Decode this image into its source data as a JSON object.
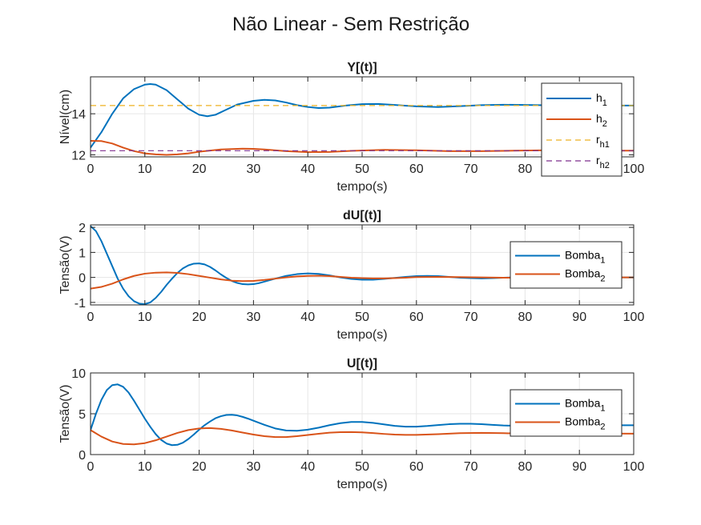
{
  "figure": {
    "title": "Não Linear - Sem Restrição"
  },
  "chart_data": [
    {
      "type": "line",
      "title": "Y[(t)]",
      "xlabel": "tempo(s)",
      "ylabel": "Nível(cm)",
      "xlim": [
        0,
        100
      ],
      "ylim": [
        11.9,
        15.8
      ],
      "xticks": [
        0,
        10,
        20,
        30,
        40,
        50,
        60,
        70,
        80,
        90,
        100
      ],
      "yticks": [
        12,
        14
      ],
      "grid": true,
      "legend_position": "top-right",
      "series": [
        {
          "label": "h",
          "sub": "1",
          "color": "#0072BD",
          "style": "solid",
          "x": [
            0,
            2,
            4,
            6,
            8,
            10,
            11,
            12,
            14,
            16,
            18,
            20,
            21.5,
            23,
            25,
            27,
            30,
            32,
            34,
            36,
            38,
            40,
            42,
            44,
            47,
            50,
            53,
            56,
            60,
            64,
            68,
            72,
            76,
            80,
            85,
            90,
            95,
            100
          ],
          "y": [
            12.35,
            13.1,
            14.0,
            14.75,
            15.2,
            15.42,
            15.45,
            15.42,
            15.15,
            14.7,
            14.25,
            13.95,
            13.88,
            13.95,
            14.2,
            14.45,
            14.63,
            14.68,
            14.65,
            14.55,
            14.42,
            14.33,
            14.28,
            14.3,
            14.4,
            14.47,
            14.48,
            14.43,
            14.36,
            14.33,
            14.37,
            14.42,
            14.44,
            14.43,
            14.41,
            14.4,
            14.4,
            14.4
          ]
        },
        {
          "label": "h",
          "sub": "2",
          "color": "#D95319",
          "style": "solid",
          "x": [
            0,
            2,
            4,
            6,
            8,
            10,
            12,
            14,
            16,
            18,
            20,
            24,
            28,
            30,
            32,
            36,
            40,
            44,
            48,
            54,
            60,
            66,
            72,
            78,
            84,
            90,
            95,
            100
          ],
          "y": [
            12.68,
            12.67,
            12.55,
            12.35,
            12.18,
            12.07,
            12.02,
            12.0,
            12.02,
            12.07,
            12.15,
            12.26,
            12.3,
            12.29,
            12.26,
            12.18,
            12.13,
            12.14,
            12.19,
            12.24,
            12.22,
            12.18,
            12.18,
            12.2,
            12.22,
            12.21,
            12.2,
            12.2
          ]
        },
        {
          "label": "r",
          "sub": "h1",
          "color": "#EDB120",
          "style": "dashed",
          "x": [
            0,
            100
          ],
          "y": [
            14.4,
            14.4
          ]
        },
        {
          "label": "r",
          "sub": "h2",
          "color": "#7E2F8E",
          "style": "dashed",
          "x": [
            0,
            100
          ],
          "y": [
            12.2,
            12.2
          ]
        }
      ]
    },
    {
      "type": "line",
      "title": "dU[(t)]",
      "xlabel": "tempo(s)",
      "ylabel": "Tensão(V)",
      "xlim": [
        0,
        100
      ],
      "ylim": [
        -1.1,
        2.1
      ],
      "xticks": [
        0,
        10,
        20,
        30,
        40,
        50,
        60,
        70,
        80,
        90,
        100
      ],
      "yticks": [
        -1,
        0,
        1,
        2
      ],
      "grid": true,
      "legend_position": "right",
      "series": [
        {
          "label": "Bomba",
          "sub": "1",
          "color": "#0072BD",
          "style": "solid",
          "x": [
            0,
            1,
            2,
            3,
            4,
            5,
            6,
            7,
            8,
            9,
            10,
            11,
            12,
            13,
            14,
            15,
            16,
            17,
            18,
            19,
            20,
            21,
            22,
            23,
            24,
            25,
            26,
            27,
            28,
            29,
            30,
            31,
            32,
            34,
            36,
            38,
            40,
            42,
            44,
            46,
            48,
            50,
            52,
            54,
            56,
            58,
            60,
            62,
            64,
            66,
            68,
            70,
            72,
            74,
            76,
            78,
            80,
            85,
            90,
            95,
            100
          ],
          "y": [
            2.05,
            1.85,
            1.45,
            0.95,
            0.45,
            -0.05,
            -0.45,
            -0.75,
            -0.95,
            -1.05,
            -1.07,
            -1.0,
            -0.82,
            -0.58,
            -0.3,
            -0.05,
            0.18,
            0.36,
            0.48,
            0.55,
            0.56,
            0.52,
            0.42,
            0.28,
            0.12,
            -0.02,
            -0.14,
            -0.22,
            -0.27,
            -0.28,
            -0.27,
            -0.23,
            -0.17,
            -0.05,
            0.06,
            0.13,
            0.16,
            0.14,
            0.08,
            0.0,
            -0.06,
            -0.09,
            -0.09,
            -0.06,
            -0.02,
            0.02,
            0.05,
            0.06,
            0.05,
            0.02,
            -0.01,
            -0.03,
            -0.04,
            -0.03,
            -0.01,
            0.0,
            0.01,
            0.01,
            0.0,
            0.0,
            0.0
          ]
        },
        {
          "label": "Bomba",
          "sub": "2",
          "color": "#D95319",
          "style": "solid",
          "x": [
            0,
            2,
            4,
            6,
            8,
            10,
            12,
            14,
            16,
            18,
            20,
            22,
            24,
            26,
            28,
            30,
            32,
            34,
            36,
            38,
            40,
            42,
            44,
            46,
            48,
            50,
            52,
            54,
            56,
            58,
            60,
            64,
            68,
            72,
            76,
            80,
            85,
            90,
            95,
            100
          ],
          "y": [
            -0.45,
            -0.38,
            -0.25,
            -0.08,
            0.06,
            0.15,
            0.19,
            0.2,
            0.18,
            0.13,
            0.06,
            -0.01,
            -0.08,
            -0.13,
            -0.15,
            -0.14,
            -0.1,
            -0.05,
            0.0,
            0.04,
            0.06,
            0.07,
            0.05,
            0.02,
            -0.01,
            -0.03,
            -0.04,
            -0.04,
            -0.03,
            -0.01,
            0.01,
            0.02,
            0.01,
            0.0,
            -0.01,
            -0.01,
            0.0,
            0.0,
            0.0,
            0.0
          ]
        }
      ]
    },
    {
      "type": "line",
      "title": "U[(t)]",
      "xlabel": "tempo(s)",
      "ylabel": "Tensão(V)",
      "xlim": [
        0,
        100
      ],
      "ylim": [
        0,
        10
      ],
      "xticks": [
        0,
        10,
        20,
        30,
        40,
        50,
        60,
        70,
        80,
        90,
        100
      ],
      "yticks": [
        0,
        5,
        10
      ],
      "grid": true,
      "legend_position": "right",
      "series": [
        {
          "label": "Bomba",
          "sub": "1",
          "color": "#0072BD",
          "style": "solid",
          "x": [
            0,
            1,
            2,
            3,
            4,
            5,
            6,
            7,
            8,
            9,
            10,
            11,
            12,
            13,
            14,
            15,
            16,
            17,
            18,
            19,
            20,
            21,
            22,
            23,
            24,
            25,
            26,
            27,
            28,
            29,
            30,
            32,
            34,
            36,
            38,
            40,
            42,
            44,
            46,
            48,
            50,
            52,
            54,
            56,
            58,
            60,
            62,
            64,
            66,
            68,
            70,
            72,
            74,
            76,
            78,
            80,
            85,
            90,
            95,
            100
          ],
          "y": [
            3.0,
            5.0,
            6.7,
            7.9,
            8.5,
            8.6,
            8.3,
            7.6,
            6.6,
            5.5,
            4.4,
            3.4,
            2.5,
            1.8,
            1.35,
            1.15,
            1.2,
            1.45,
            1.9,
            2.45,
            3.05,
            3.6,
            4.05,
            4.45,
            4.7,
            4.85,
            4.88,
            4.8,
            4.62,
            4.4,
            4.15,
            3.65,
            3.2,
            2.95,
            2.92,
            3.05,
            3.3,
            3.6,
            3.85,
            4.0,
            4.0,
            3.88,
            3.7,
            3.52,
            3.42,
            3.42,
            3.5,
            3.62,
            3.72,
            3.78,
            3.78,
            3.72,
            3.64,
            3.57,
            3.53,
            3.53,
            3.58,
            3.6,
            3.59,
            3.59
          ]
        },
        {
          "label": "Bomba",
          "sub": "2",
          "color": "#D95319",
          "style": "solid",
          "x": [
            0,
            2,
            4,
            6,
            8,
            10,
            12,
            14,
            16,
            18,
            20,
            22,
            24,
            26,
            28,
            30,
            32,
            34,
            36,
            38,
            40,
            42,
            44,
            46,
            48,
            50,
            52,
            54,
            56,
            58,
            60,
            64,
            68,
            72,
            76,
            80,
            85,
            90,
            95,
            100
          ],
          "y": [
            3.0,
            2.2,
            1.6,
            1.3,
            1.25,
            1.4,
            1.75,
            2.2,
            2.65,
            3.0,
            3.2,
            3.25,
            3.15,
            2.95,
            2.7,
            2.45,
            2.25,
            2.15,
            2.15,
            2.25,
            2.4,
            2.55,
            2.68,
            2.75,
            2.76,
            2.72,
            2.63,
            2.53,
            2.45,
            2.41,
            2.41,
            2.5,
            2.62,
            2.66,
            2.62,
            2.56,
            2.55,
            2.58,
            2.57,
            2.56
          ]
        }
      ]
    }
  ]
}
